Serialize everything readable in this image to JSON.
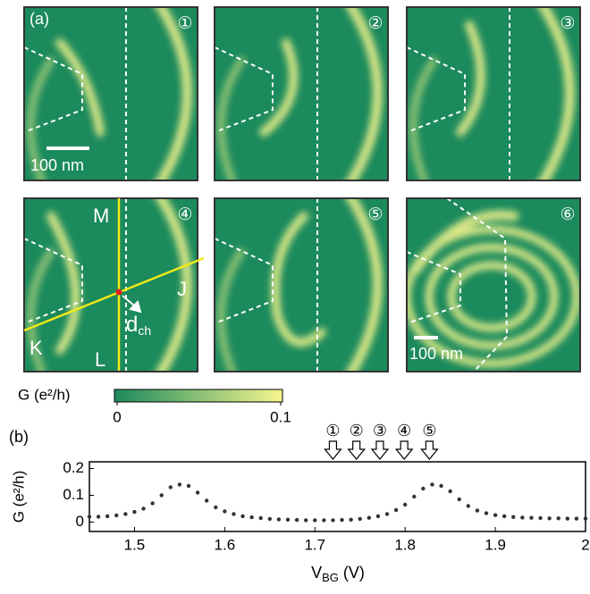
{
  "figure": {
    "panel_a_label": "(a)",
    "panel_b_label": "(b)",
    "panels": [
      {
        "label": "①"
      },
      {
        "label": "②"
      },
      {
        "label": "③"
      },
      {
        "label": "④"
      },
      {
        "label": "⑤"
      },
      {
        "label": "⑥"
      }
    ],
    "scale_bar_1": "100 nm",
    "scale_bar_6": "100 nm",
    "point_labels": {
      "M": "M",
      "J": "J",
      "K": "K",
      "L": "L"
    },
    "dch": {
      "main": "d",
      "sub": "ch"
    },
    "colorbar": {
      "label": "G (e²/h)",
      "lim": [
        0,
        0.1
      ],
      "ticks": [
        0,
        0.1
      ],
      "colors": [
        "#1b8a5c",
        "#f7f58e"
      ]
    }
  },
  "chart_data": {
    "type": "scatter",
    "ylabel": "G (e²/h)",
    "xlabel": {
      "main": "V",
      "sub": "BG",
      "unit": "(V)"
    },
    "color": "#333333",
    "x": [
      1.45,
      1.46,
      1.47,
      1.48,
      1.49,
      1.5,
      1.51,
      1.52,
      1.53,
      1.54,
      1.55,
      1.56,
      1.57,
      1.58,
      1.59,
      1.6,
      1.61,
      1.62,
      1.63,
      1.64,
      1.65,
      1.66,
      1.67,
      1.68,
      1.69,
      1.7,
      1.71,
      1.72,
      1.73,
      1.74,
      1.75,
      1.76,
      1.77,
      1.78,
      1.79,
      1.8,
      1.81,
      1.82,
      1.83,
      1.84,
      1.85,
      1.86,
      1.87,
      1.88,
      1.89,
      1.9,
      1.91,
      1.92,
      1.93,
      1.94,
      1.95,
      1.96,
      1.97,
      1.98,
      1.99,
      2.0
    ],
    "values": [
      0.02,
      0.02,
      0.022,
      0.025,
      0.03,
      0.038,
      0.05,
      0.07,
      0.1,
      0.13,
      0.14,
      0.135,
      0.11,
      0.08,
      0.055,
      0.04,
      0.03,
      0.022,
      0.018,
      0.015,
      0.012,
      0.01,
      0.009,
      0.008,
      0.007,
      0.007,
      0.007,
      0.007,
      0.008,
      0.009,
      0.012,
      0.016,
      0.022,
      0.03,
      0.045,
      0.065,
      0.095,
      0.125,
      0.14,
      0.135,
      0.115,
      0.085,
      0.06,
      0.043,
      0.033,
      0.026,
      0.022,
      0.019,
      0.017,
      0.016,
      0.015,
      0.014,
      0.014,
      0.013,
      0.013,
      0.013
    ],
    "xlim": [
      1.45,
      2.0
    ],
    "ylim": [
      -0.035,
      0.225
    ],
    "xticks": [
      1.5,
      1.6,
      1.7,
      1.8,
      1.9,
      2
    ],
    "yticks": [
      0,
      0.1,
      0.2
    ],
    "annotations": [
      {
        "label": "①",
        "x": 1.72
      },
      {
        "label": "②",
        "x": 1.746
      },
      {
        "label": "③",
        "x": 1.772
      },
      {
        "label": "④",
        "x": 1.799
      },
      {
        "label": "⑤",
        "x": 1.827
      }
    ]
  }
}
